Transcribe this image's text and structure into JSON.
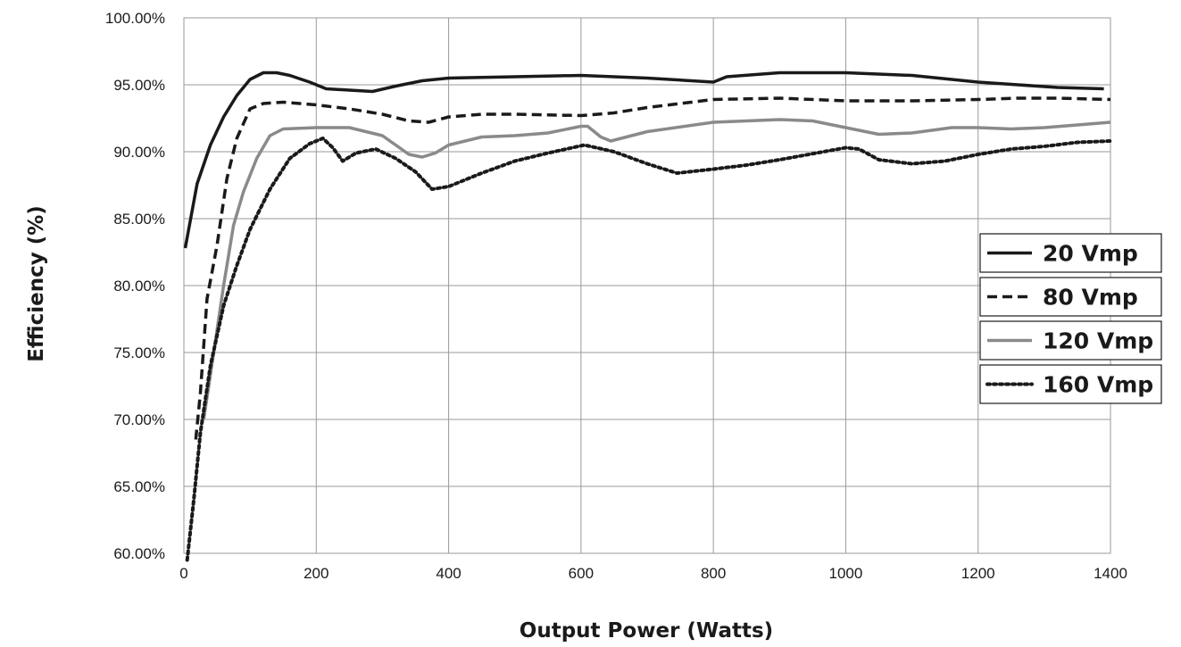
{
  "chart_data": {
    "type": "line",
    "title": "",
    "xlabel": "Output Power (Watts)",
    "ylabel": "Efficiency  (%)",
    "xlim": [
      0,
      1400
    ],
    "ylim": [
      60,
      100
    ],
    "x_ticks": [
      0,
      200,
      400,
      600,
      800,
      1000,
      1200,
      1400
    ],
    "x_tick_labels": [
      "0",
      "200",
      "400",
      "600",
      "800",
      "1000",
      "1200",
      "1400"
    ],
    "y_ticks": [
      60,
      65,
      70,
      75,
      80,
      85,
      90,
      95,
      100
    ],
    "y_tick_labels": [
      "60.00%",
      "65.00%",
      "70.00%",
      "75.00%",
      "80.00%",
      "85.00%",
      "90.00%",
      "95.00%",
      "100.00%"
    ],
    "grid": true,
    "legend_position": "right",
    "series": [
      {
        "name": "20 Vmp",
        "color": "#1a1a1a",
        "dash": "solid",
        "x": [
          2,
          20,
          40,
          60,
          80,
          100,
          120,
          140,
          160,
          190,
          215,
          250,
          285,
          320,
          360,
          400,
          500,
          600,
          700,
          800,
          820,
          900,
          1000,
          1100,
          1200,
          1260,
          1320,
          1390
        ],
        "y": [
          82.8,
          87.6,
          90.5,
          92.6,
          94.2,
          95.4,
          95.9,
          95.9,
          95.7,
          95.2,
          94.7,
          94.6,
          94.5,
          94.9,
          95.3,
          95.5,
          95.6,
          95.7,
          95.5,
          95.2,
          95.6,
          95.9,
          95.9,
          95.7,
          95.2,
          95.0,
          94.8,
          94.7
        ]
      },
      {
        "name": "80 Vmp",
        "color": "#1a1a1a",
        "dash": "dashed",
        "x": [
          18,
          25,
          35,
          50,
          65,
          80,
          100,
          120,
          150,
          200,
          250,
          300,
          340,
          370,
          400,
          450,
          500,
          600,
          650,
          700,
          800,
          900,
          1000,
          1100,
          1200,
          1260,
          1320,
          1400
        ],
        "y": [
          68.5,
          72,
          79,
          83,
          88,
          91,
          93.2,
          93.6,
          93.7,
          93.5,
          93.2,
          92.8,
          92.3,
          92.2,
          92.6,
          92.8,
          92.8,
          92.7,
          92.9,
          93.3,
          93.9,
          94.0,
          93.8,
          93.8,
          93.9,
          94.0,
          94.0,
          93.9
        ]
      },
      {
        "name": "120 Vmp",
        "color": "#8a8a8a",
        "dash": "solid",
        "x": [
          30,
          45,
          60,
          75,
          90,
          110,
          130,
          150,
          200,
          250,
          300,
          340,
          360,
          380,
          400,
          450,
          500,
          550,
          600,
          610,
          620,
          630,
          645,
          700,
          800,
          900,
          950,
          1000,
          1050,
          1100,
          1160,
          1200,
          1250,
          1300,
          1350,
          1400
        ],
        "y": [
          70,
          75,
          80,
          84.5,
          87,
          89.5,
          91.2,
          91.7,
          91.8,
          91.8,
          91.2,
          89.8,
          89.6,
          89.9,
          90.5,
          91.1,
          91.2,
          91.4,
          91.9,
          91.9,
          91.5,
          91.1,
          90.8,
          91.5,
          92.2,
          92.4,
          92.3,
          91.8,
          91.3,
          91.4,
          91.8,
          91.8,
          91.7,
          91.8,
          92.0,
          92.2
        ]
      },
      {
        "name": "160 Vmp",
        "color": "#1a1a1a",
        "dash": "dotted",
        "x": [
          5,
          15,
          25,
          40,
          60,
          80,
          100,
          130,
          160,
          190,
          210,
          225,
          240,
          260,
          290,
          320,
          350,
          375,
          400,
          450,
          500,
          550,
          605,
          650,
          700,
          745,
          800,
          850,
          900,
          1000,
          1020,
          1050,
          1100,
          1150,
          1200,
          1250,
          1300,
          1350,
          1400
        ],
        "y": [
          59.5,
          64,
          69,
          74,
          78.5,
          81.5,
          84.2,
          87.2,
          89.5,
          90.6,
          91.0,
          90.3,
          89.3,
          89.9,
          90.2,
          89.5,
          88.5,
          87.2,
          87.4,
          88.4,
          89.3,
          89.9,
          90.5,
          90.0,
          89.1,
          88.4,
          88.7,
          89.0,
          89.4,
          90.3,
          90.2,
          89.4,
          89.1,
          89.3,
          89.8,
          90.2,
          90.4,
          90.7,
          90.8
        ]
      }
    ]
  }
}
